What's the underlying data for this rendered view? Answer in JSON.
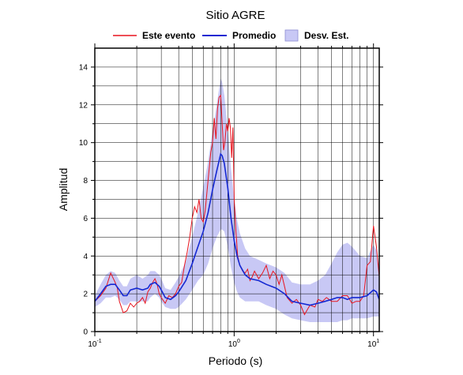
{
  "chart_data": {
    "type": "line",
    "title": "Sitio AGRE",
    "xlabel": "Periodo (s)",
    "ylabel": "Amplitud",
    "xscale": "log",
    "xlim": [
      0.1,
      11
    ],
    "ylim": [
      0,
      15
    ],
    "yticks": [
      0,
      2,
      4,
      6,
      8,
      10,
      12,
      14
    ],
    "xticks": [
      {
        "base": "10",
        "exp": "-1",
        "value": 0.1
      },
      {
        "base": "10",
        "exp": "0",
        "value": 1
      },
      {
        "base": "10",
        "exp": "1",
        "value": 10
      }
    ],
    "grid": true,
    "legend_position": "top",
    "legend": [
      {
        "label": "Este evento",
        "kind": "line",
        "color": "#e8141e"
      },
      {
        "label": "Promedio",
        "kind": "line",
        "color": "#1428d2"
      },
      {
        "label": "Desv. Est.",
        "kind": "band",
        "color": "#c8c8f5"
      }
    ],
    "series": [
      {
        "name": "Promedio",
        "color": "#1428d2",
        "x": [
          0.1,
          0.11,
          0.12,
          0.13,
          0.14,
          0.15,
          0.16,
          0.17,
          0.18,
          0.2,
          0.22,
          0.24,
          0.25,
          0.27,
          0.29,
          0.3,
          0.32,
          0.35,
          0.38,
          0.4,
          0.45,
          0.5,
          0.55,
          0.6,
          0.65,
          0.7,
          0.75,
          0.8,
          0.82,
          0.85,
          0.9,
          0.95,
          1.0,
          1.05,
          1.1,
          1.2,
          1.3,
          1.5,
          1.7,
          2.0,
          2.3,
          2.6,
          3.0,
          3.5,
          4.0,
          4.5,
          5.0,
          5.5,
          6.0,
          6.5,
          7.0,
          8.0,
          9.0,
          10.0,
          10.5,
          11.0
        ],
        "values": [
          1.6,
          2.0,
          2.4,
          2.5,
          2.5,
          2.2,
          1.9,
          1.9,
          2.2,
          2.3,
          2.2,
          2.3,
          2.5,
          2.6,
          2.4,
          2.2,
          1.8,
          1.7,
          1.9,
          2.1,
          2.7,
          3.6,
          4.5,
          5.3,
          6.3,
          7.5,
          8.5,
          9.4,
          9.3,
          8.9,
          7.6,
          6.0,
          4.8,
          4.0,
          3.5,
          3.0,
          2.8,
          2.7,
          2.5,
          2.3,
          2.0,
          1.6,
          1.5,
          1.4,
          1.5,
          1.6,
          1.7,
          1.8,
          1.8,
          1.7,
          1.8,
          1.8,
          1.9,
          2.2,
          2.1,
          1.7
        ]
      },
      {
        "name": "Este evento",
        "color": "#e8141e",
        "x": [
          0.1,
          0.11,
          0.12,
          0.13,
          0.14,
          0.145,
          0.15,
          0.16,
          0.17,
          0.18,
          0.19,
          0.2,
          0.21,
          0.22,
          0.23,
          0.24,
          0.25,
          0.26,
          0.27,
          0.28,
          0.29,
          0.3,
          0.32,
          0.34,
          0.36,
          0.38,
          0.4,
          0.42,
          0.44,
          0.46,
          0.48,
          0.5,
          0.52,
          0.54,
          0.56,
          0.58,
          0.6,
          0.62,
          0.64,
          0.66,
          0.68,
          0.7,
          0.72,
          0.74,
          0.76,
          0.78,
          0.8,
          0.82,
          0.84,
          0.86,
          0.88,
          0.9,
          0.92,
          0.94,
          0.96,
          0.98,
          1.0,
          1.03,
          1.06,
          1.1,
          1.15,
          1.2,
          1.25,
          1.3,
          1.35,
          1.4,
          1.5,
          1.6,
          1.7,
          1.8,
          1.9,
          2.0,
          2.1,
          2.2,
          2.4,
          2.6,
          2.8,
          3.0,
          3.2,
          3.5,
          3.8,
          4.0,
          4.3,
          4.6,
          5.0,
          5.5,
          6.0,
          6.5,
          7.0,
          7.5,
          8.0,
          8.5,
          9.0,
          9.5,
          10.0,
          10.5,
          11.0
        ],
        "values": [
          1.6,
          1.9,
          2.3,
          3.1,
          2.6,
          2.3,
          1.6,
          1.0,
          1.1,
          1.5,
          1.3,
          1.5,
          1.6,
          1.8,
          1.5,
          2.1,
          2.3,
          2.6,
          2.8,
          2.5,
          2.0,
          1.8,
          1.5,
          1.9,
          1.8,
          2.0,
          2.4,
          2.6,
          3.5,
          4.2,
          5.0,
          6.0,
          6.6,
          6.3,
          7.0,
          6.0,
          5.8,
          6.4,
          7.5,
          8.5,
          9.5,
          10.0,
          11.3,
          10.2,
          11.8,
          12.4,
          12.5,
          11.0,
          9.6,
          10.1,
          11.0,
          10.6,
          11.3,
          10.8,
          9.2,
          10.8,
          7.0,
          5.3,
          4.0,
          3.5,
          3.2,
          3.1,
          3.3,
          2.7,
          2.9,
          3.2,
          2.8,
          3.1,
          3.5,
          2.8,
          3.2,
          3.0,
          2.5,
          3.0,
          1.8,
          1.5,
          1.7,
          1.4,
          0.9,
          1.4,
          1.3,
          1.7,
          1.6,
          1.8,
          1.6,
          1.6,
          1.9,
          1.9,
          1.5,
          1.6,
          1.6,
          1.9,
          3.5,
          3.7,
          5.6,
          4.5,
          2.9
        ]
      }
    ],
    "band": {
      "name": "Desv. Est.",
      "color": "#c8c8f5",
      "x": [
        0.1,
        0.11,
        0.12,
        0.13,
        0.14,
        0.15,
        0.16,
        0.17,
        0.18,
        0.2,
        0.22,
        0.24,
        0.25,
        0.27,
        0.29,
        0.3,
        0.32,
        0.35,
        0.38,
        0.4,
        0.45,
        0.5,
        0.55,
        0.6,
        0.65,
        0.7,
        0.75,
        0.8,
        0.82,
        0.85,
        0.9,
        0.95,
        1.0,
        1.05,
        1.1,
        1.2,
        1.3,
        1.5,
        1.7,
        2.0,
        2.3,
        2.6,
        3.0,
        3.5,
        4.0,
        4.5,
        5.0,
        5.5,
        6.0,
        6.5,
        7.0,
        8.0,
        9.0,
        10.0,
        10.5,
        11.0
      ],
      "upper": [
        1.9,
        2.5,
        3.0,
        3.2,
        3.1,
        2.7,
        2.4,
        2.4,
        2.8,
        3.0,
        2.8,
        3.0,
        3.2,
        3.2,
        3.0,
        2.8,
        2.3,
        2.2,
        2.6,
        2.9,
        3.7,
        5.0,
        6.3,
        7.6,
        9.0,
        10.6,
        12.0,
        13.4,
        13.2,
        12.5,
        10.7,
        8.6,
        7.0,
        5.9,
        5.2,
        4.4,
        4.0,
        3.8,
        3.6,
        3.4,
        3.1,
        2.6,
        2.5,
        2.5,
        2.7,
        3.0,
        3.6,
        4.2,
        4.6,
        4.7,
        4.5,
        4.0,
        3.9,
        4.6,
        4.3,
        3.3
      ]
    },
    "band_lower": [
      1.3,
      1.5,
      1.8,
      1.8,
      1.9,
      1.7,
      1.4,
      1.4,
      1.6,
      1.6,
      1.6,
      1.6,
      1.8,
      2.0,
      1.8,
      1.6,
      1.3,
      1.2,
      1.2,
      1.3,
      1.7,
      2.2,
      2.7,
      3.0,
      3.6,
      4.4,
      5.0,
      5.4,
      5.4,
      5.3,
      4.5,
      3.4,
      2.6,
      2.1,
      1.8,
      1.6,
      1.6,
      1.6,
      1.4,
      1.2,
      0.9,
      0.7,
      0.6,
      0.5,
      0.5,
      0.5,
      0.5,
      0.5,
      0.6,
      0.6,
      0.7,
      0.7,
      0.7,
      0.8,
      0.8,
      0.8
    ]
  }
}
